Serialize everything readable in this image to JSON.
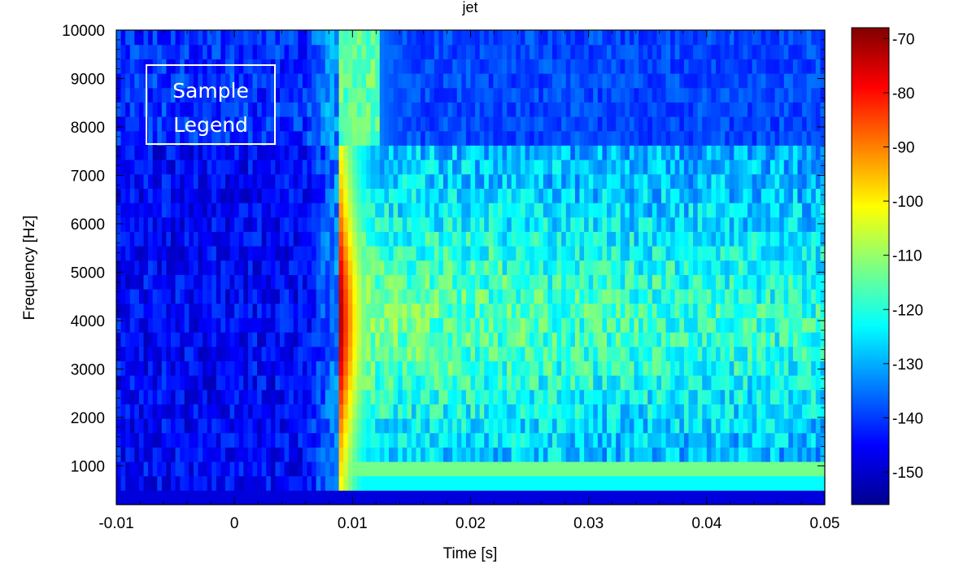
{
  "chart_data": {
    "type": "heatmap",
    "title": "jet",
    "xlabel": "Time [s]",
    "ylabel": "Frequency [Hz]",
    "xlim": [
      -0.01,
      0.05
    ],
    "ylim": [
      200,
      10000
    ],
    "x_ticks": [
      {
        "value": -0.01,
        "label": "-0.01"
      },
      {
        "value": 0,
        "label": "0"
      },
      {
        "value": 0.01,
        "label": "0.01"
      },
      {
        "value": 0.02,
        "label": "0.02"
      },
      {
        "value": 0.03,
        "label": "0.03"
      },
      {
        "value": 0.04,
        "label": "0.04"
      },
      {
        "value": 0.05,
        "label": "0.05"
      }
    ],
    "y_ticks": [
      {
        "value": 1000,
        "label": "1000"
      },
      {
        "value": 2000,
        "label": "2000"
      },
      {
        "value": 3000,
        "label": "3000"
      },
      {
        "value": 4000,
        "label": "4000"
      },
      {
        "value": 5000,
        "label": "5000"
      },
      {
        "value": 6000,
        "label": "6000"
      },
      {
        "value": 7000,
        "label": "7000"
      },
      {
        "value": 8000,
        "label": "8000"
      },
      {
        "value": 9000,
        "label": "9000"
      },
      {
        "value": 10000,
        "label": "10000"
      }
    ],
    "colorbar": {
      "colormap": "jet",
      "range": [
        -156,
        -68
      ],
      "ticks": [
        {
          "value": -70,
          "label": "-70"
        },
        {
          "value": -80,
          "label": "-80"
        },
        {
          "value": -90,
          "label": "-90"
        },
        {
          "value": -100,
          "label": "-100"
        },
        {
          "value": -110,
          "label": "-110"
        },
        {
          "value": -120,
          "label": "-120"
        },
        {
          "value": -130,
          "label": "-130"
        },
        {
          "value": -140,
          "label": "-140"
        },
        {
          "value": -150,
          "label": "-150"
        }
      ]
    },
    "legend": {
      "position": "top-left",
      "lines": [
        "Sample",
        "Legend"
      ]
    },
    "notes": {
      "onset_time": 0.0088,
      "peak_time": 0.0105,
      "peak_frequency": 4000,
      "peak_level": -70,
      "background_level": -145
    }
  }
}
